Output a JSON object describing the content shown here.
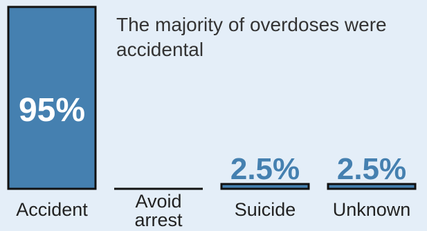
{
  "chart_data": {
    "type": "bar",
    "title": "The majority of overdoses were accidental",
    "categories": [
      "Accident",
      "Avoid arrest",
      "Suicide",
      "Unknown"
    ],
    "category_lines": [
      [
        "Accident"
      ],
      [
        "Avoid",
        "arrest"
      ],
      [
        "Suicide"
      ],
      [
        "Unknown"
      ]
    ],
    "values": [
      95,
      0,
      2.5,
      2.5
    ],
    "value_labels": [
      "95%",
      "",
      "2.5%",
      "2.5%"
    ],
    "ylim": [
      0,
      95
    ],
    "xlabel": "",
    "ylabel": "",
    "grid": false,
    "colors": {
      "background": "#e4eef8",
      "bar": "#4580b0",
      "bar_outline": "#111111",
      "label_on_bar": "#ffffff",
      "label_above_bar": "#4580b0",
      "title_text": "#333333",
      "category_text": "#222222"
    }
  }
}
